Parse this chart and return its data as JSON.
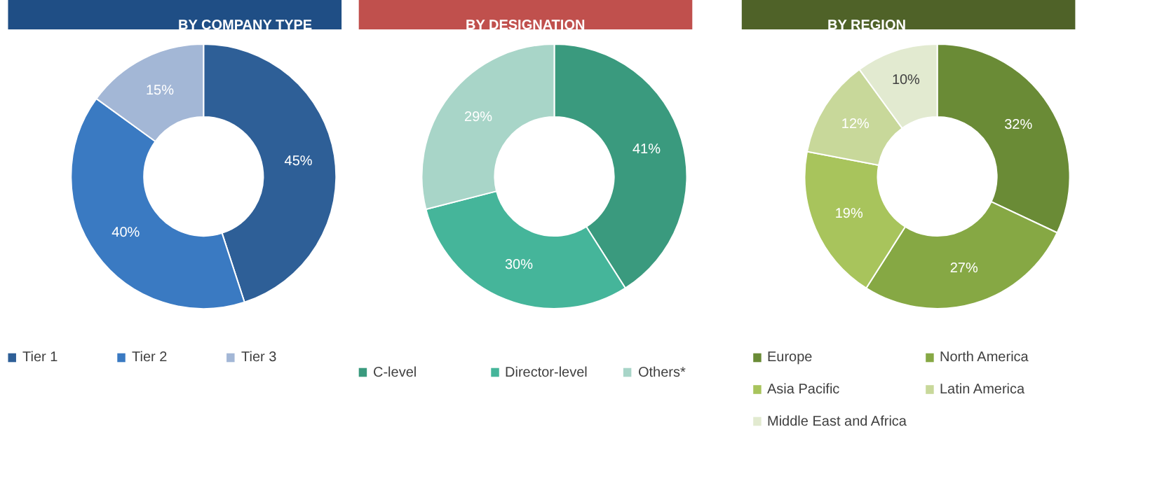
{
  "chart_data": [
    {
      "type": "donut",
      "title": "BY COMPANY TYPE",
      "categories": [
        "Tier 1",
        "Tier 2",
        "Tier 3"
      ],
      "values": [
        45,
        40,
        15
      ],
      "value_labels": [
        "45%",
        "40%",
        "15%"
      ],
      "colors": [
        "#2e5f97",
        "#3a7ac2",
        "#a3b7d6"
      ],
      "legend": "bottom"
    },
    {
      "type": "donut",
      "title": "BY DESIGNATION",
      "categories": [
        "C-level",
        "Director-level",
        "Others*"
      ],
      "values": [
        41,
        30,
        29
      ],
      "value_labels": [
        "41%",
        "30%",
        "29%"
      ],
      "colors": [
        "#3a9a7e",
        "#45b59a",
        "#a8d5c8"
      ],
      "legend": "bottom"
    },
    {
      "type": "donut",
      "title": "BY REGION",
      "categories": [
        "Europe",
        "North America",
        "Asia Pacific",
        "Latin America",
        "Middle East and Africa"
      ],
      "values": [
        32,
        27,
        19,
        12,
        10
      ],
      "value_labels": [
        "32%",
        "27%",
        "19%",
        "12%",
        "10%"
      ],
      "colors": [
        "#6a8b36",
        "#86a844",
        "#a8c45c",
        "#c8d89a",
        "#e2ead0"
      ],
      "legend": "bottom"
    }
  ]
}
